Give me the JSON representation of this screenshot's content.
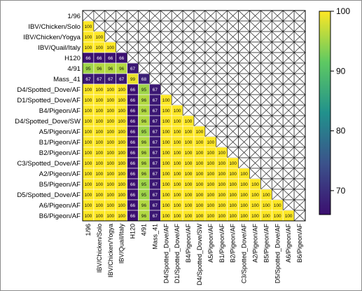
{
  "chart_data": {
    "type": "heatmap",
    "title": "",
    "xlabel": "",
    "ylabel": "",
    "strains": [
      "1/96",
      "IBV/Chicken/Solo",
      "IBV/Chicken/Yogya",
      "IBV/Quail/Italy",
      "H120",
      "4/91",
      "Mass_41",
      "D4/Spotted_Dove/AF",
      "D1/Spotted_Dove/AF",
      "B4/Pigeon/AF",
      "D4/Spotted_Dove/SW",
      "A5/Pigeon/AF",
      "B1/Pigeon/AF",
      "B2/Pigeon/AF",
      "C3/Spotted_Dove/AF",
      "A2/Pigeon/AF",
      "B5/Pigeon/AF",
      "D5/Spotted_Dove/AF",
      "A6/Pigeon/AF",
      "B6/Pigeon/AF"
    ],
    "matrix": [
      [
        null
      ],
      [
        100,
        null
      ],
      [
        100,
        100,
        null
      ],
      [
        100,
        100,
        100,
        null
      ],
      [
        66,
        66,
        66,
        66,
        null
      ],
      [
        95,
        96,
        96,
        96,
        67,
        null
      ],
      [
        67,
        67,
        67,
        67,
        99,
        68,
        null
      ],
      [
        100,
        100,
        100,
        100,
        66,
        95,
        67,
        null
      ],
      [
        100,
        100,
        100,
        100,
        66,
        96,
        67,
        100,
        null
      ],
      [
        100,
        100,
        100,
        100,
        66,
        96,
        67,
        100,
        100,
        null
      ],
      [
        100,
        100,
        100,
        100,
        66,
        96,
        67,
        100,
        100,
        100,
        null
      ],
      [
        100,
        100,
        100,
        100,
        66,
        95,
        67,
        100,
        100,
        100,
        100,
        null
      ],
      [
        100,
        100,
        100,
        100,
        66,
        96,
        67,
        100,
        100,
        100,
        100,
        100,
        null
      ],
      [
        100,
        100,
        100,
        100,
        66,
        96,
        67,
        100,
        100,
        100,
        100,
        100,
        100,
        null
      ],
      [
        100,
        100,
        100,
        100,
        66,
        96,
        67,
        100,
        100,
        100,
        100,
        100,
        100,
        100,
        null
      ],
      [
        100,
        100,
        100,
        100,
        66,
        96,
        67,
        100,
        100,
        100,
        100,
        100,
        100,
        100,
        100,
        null
      ],
      [
        100,
        100,
        100,
        100,
        66,
        95,
        67,
        100,
        100,
        100,
        100,
        100,
        100,
        100,
        100,
        100,
        null
      ],
      [
        100,
        100,
        100,
        100,
        66,
        95,
        67,
        100,
        100,
        100,
        100,
        100,
        100,
        100,
        100,
        100,
        100,
        null
      ],
      [
        100,
        100,
        100,
        100,
        66,
        96,
        67,
        100,
        100,
        100,
        100,
        100,
        100,
        100,
        100,
        100,
        100,
        100,
        null
      ],
      [
        100,
        100,
        100,
        100,
        66,
        96,
        67,
        100,
        100,
        100,
        100,
        100,
        100,
        100,
        100,
        100,
        100,
        100,
        100,
        null
      ]
    ],
    "colorscale": {
      "min": 66,
      "max": 100,
      "ticks": [
        70,
        80,
        90,
        100
      ],
      "stops": [
        "#3b0f70",
        "#3b528b",
        "#21918c",
        "#5ec962",
        "#fde725"
      ]
    },
    "empty_cell_mark": "cross",
    "legend": "right"
  }
}
